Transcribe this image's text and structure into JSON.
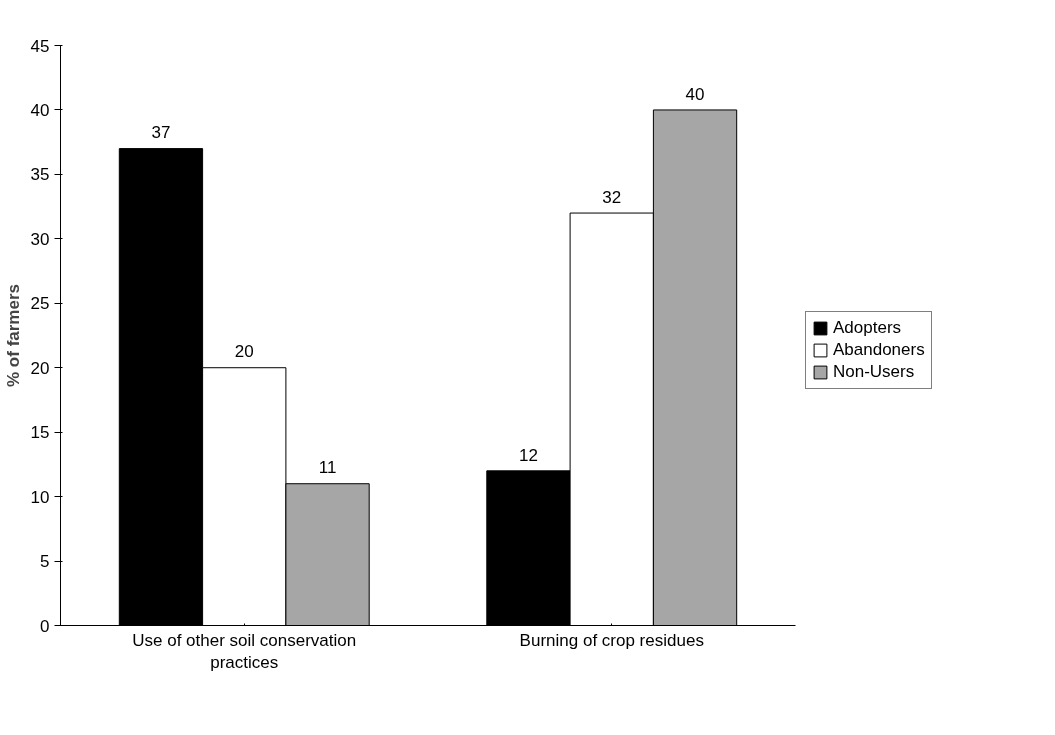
{
  "chart_data": {
    "type": "bar",
    "ylabel": "% of farmers",
    "categories": [
      "Use of other soil conservation practices",
      "Burning of crop residues"
    ],
    "series": [
      {
        "name": "Adopters",
        "color": "#000000",
        "values": [
          37,
          12
        ]
      },
      {
        "name": "Abandoners",
        "color": "#ffffff",
        "values": [
          20,
          32
        ]
      },
      {
        "name": "Non-Users",
        "color": "#a6a6a6",
        "values": [
          11,
          40
        ]
      }
    ],
    "ylim": [
      0,
      45
    ],
    "yticks": [
      0,
      5,
      10,
      15,
      20,
      25,
      30,
      35,
      40,
      45
    ],
    "data_labels": true,
    "grid": false,
    "legend": "right"
  }
}
